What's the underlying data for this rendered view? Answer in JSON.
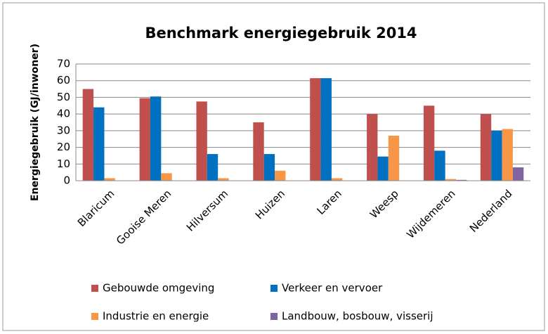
{
  "chart_data": {
    "type": "bar",
    "title": "Benchmark energiegebruik 2014",
    "y_label": "Energiegebruik (GJ/inwoner)",
    "categories": [
      "Blaricum",
      "Gooise Meren",
      "Hilversum",
      "Huizen",
      "Laren",
      "Weesp",
      "Wijdemeren",
      "Nederland"
    ],
    "series": [
      {
        "name": "Gebouwde omgeving",
        "color": "#c0504d",
        "values": [
          55,
          49.5,
          47.5,
          35,
          61.5,
          40,
          45,
          40
        ]
      },
      {
        "name": "Verkeer en vervoer",
        "color": "#0070c0",
        "values": [
          44,
          50.5,
          16,
          16,
          61.5,
          14.5,
          18,
          30
        ]
      },
      {
        "name": "Industrie en energie",
        "color": "#f79646",
        "values": [
          1.5,
          4.5,
          1.5,
          6,
          1.5,
          27,
          1,
          31
        ]
      },
      {
        "name": "Landbouw, bosbouw, visserij",
        "color": "#8064a2",
        "values": [
          0,
          0,
          0,
          0,
          0,
          0,
          0.5,
          8
        ]
      }
    ],
    "ylim": [
      0,
      70
    ],
    "yticks": [
      0,
      10,
      20,
      30,
      40,
      50,
      60,
      70
    ],
    "grid": true,
    "legend": "bottom"
  }
}
